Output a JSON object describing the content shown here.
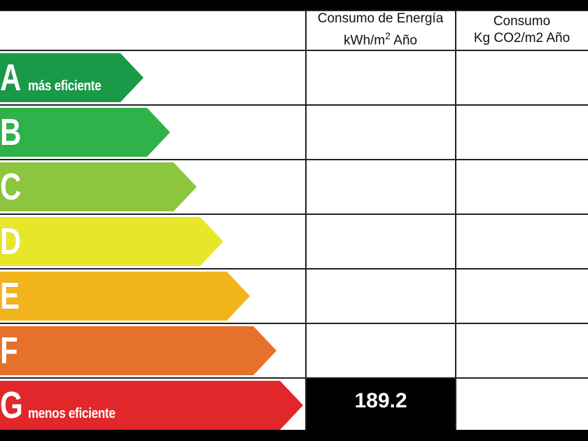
{
  "header": {
    "energy_line1": "Consumo de Energía",
    "energy_line2_pre": "kWh/m",
    "energy_line2_sup": "2",
    "energy_line2_post": " Año",
    "co2_line1": "Consumo",
    "co2_line2": "Kg CO2/m2 Año"
  },
  "ratings": [
    {
      "letter": "A",
      "caption": "más eficiente",
      "color": "#1a9a48"
    },
    {
      "letter": "B",
      "caption": "",
      "color": "#2fb24a"
    },
    {
      "letter": "C",
      "caption": "",
      "color": "#8cc63f"
    },
    {
      "letter": "D",
      "caption": "",
      "color": "#e8e62a"
    },
    {
      "letter": "E",
      "caption": "",
      "color": "#f2b41c"
    },
    {
      "letter": "F",
      "caption": "",
      "color": "#e6712a"
    },
    {
      "letter": "G",
      "caption": "menos eficiente",
      "color": "#e2272a"
    }
  ],
  "energy_value": "189.2",
  "energy_rating": "G"
}
